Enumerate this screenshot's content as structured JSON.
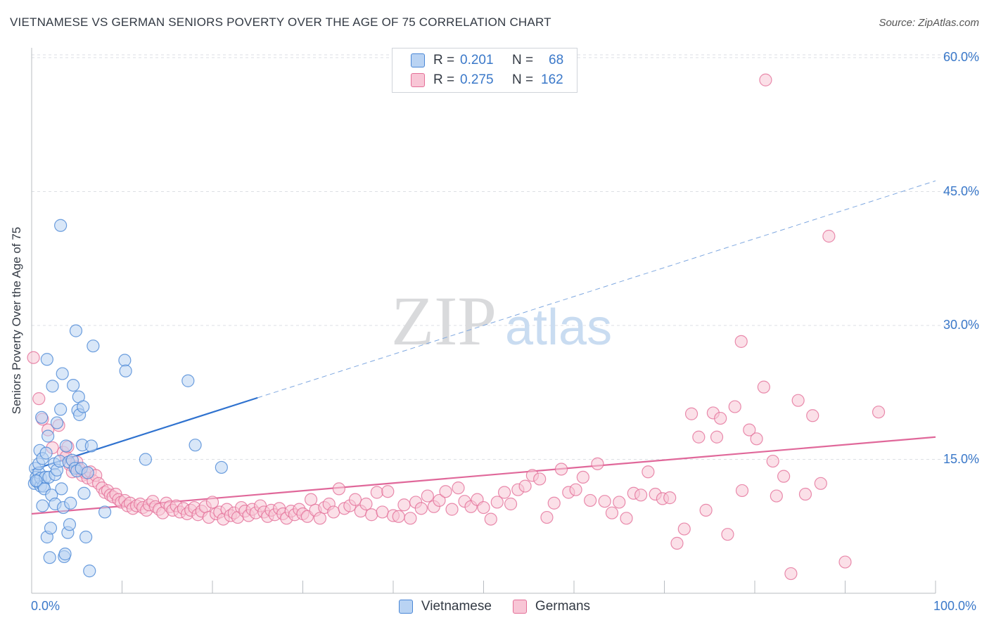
{
  "header": {
    "title": "VIETNAMESE VS GERMAN SENIORS POVERTY OVER THE AGE OF 75 CORRELATION CHART",
    "source": "Source: ZipAtlas.com"
  },
  "watermark": {
    "zip": "ZIP",
    "atlas": "atlas"
  },
  "legend": {
    "rows": [
      {
        "r_label": "R =",
        "r_value": "0.201",
        "n_label": "N =",
        "n_value": "68",
        "color": "#4a87d6",
        "fill": "#b9d3f3"
      },
      {
        "r_label": "R =",
        "r_value": "0.275",
        "n_label": "N =",
        "n_value": "162",
        "color": "#e46f98",
        "fill": "#f8c6d6"
      }
    ]
  },
  "chart_data": {
    "type": "scatter",
    "title": "VIETNAMESE VS GERMAN SENIORS POVERTY OVER THE AGE OF 75 CORRELATION CHART",
    "xlabel": "",
    "ylabel": "Seniors Poverty Over the Age of 75",
    "xlim": [
      0,
      100
    ],
    "ylim": [
      0,
      60
    ],
    "x_tick_labels": [
      "0.0%",
      "100.0%"
    ],
    "y_tick_labels": [
      "15.0%",
      "30.0%",
      "45.0%",
      "60.0%"
    ],
    "y_ticks": [
      15,
      30,
      45,
      60
    ],
    "grid": true,
    "legend_position": "top-center",
    "series": [
      {
        "name": "Vietnamese",
        "color": "#4a87d6",
        "fill": "#b9d3f3",
        "trend": {
          "x0": 0,
          "y0": 13.8,
          "x1": 25,
          "y1": 21.9,
          "dash_to_x": 100,
          "dash_to_y": 46.2
        },
        "points": [
          [
            0.3,
            12.3
          ],
          [
            0.4,
            14.0
          ],
          [
            0.5,
            13.0
          ],
          [
            0.6,
            12.5
          ],
          [
            0.7,
            12.6
          ],
          [
            0.8,
            13.5
          ],
          [
            0.8,
            14.5
          ],
          [
            0.9,
            16.0
          ],
          [
            1.0,
            12.0
          ],
          [
            1.0,
            12.9
          ],
          [
            1.1,
            19.7
          ],
          [
            1.2,
            15.1
          ],
          [
            1.2,
            9.8
          ],
          [
            1.3,
            12.0
          ],
          [
            1.4,
            11.7
          ],
          [
            1.5,
            13.0
          ],
          [
            1.6,
            15.7
          ],
          [
            1.7,
            6.3
          ],
          [
            1.7,
            26.2
          ],
          [
            1.8,
            17.6
          ],
          [
            1.9,
            13.0
          ],
          [
            2.0,
            4.0
          ],
          [
            2.1,
            7.3
          ],
          [
            2.2,
            11.0
          ],
          [
            2.3,
            23.2
          ],
          [
            2.5,
            14.5
          ],
          [
            2.6,
            10.0
          ],
          [
            2.6,
            13.3
          ],
          [
            2.8,
            13.8
          ],
          [
            2.8,
            19.1
          ],
          [
            3.1,
            14.8
          ],
          [
            3.2,
            20.6
          ],
          [
            3.3,
            11.7
          ],
          [
            3.4,
            24.6
          ],
          [
            3.5,
            9.6
          ],
          [
            3.6,
            4.1
          ],
          [
            3.7,
            4.4
          ],
          [
            3.8,
            16.5
          ],
          [
            4.0,
            6.8
          ],
          [
            4.1,
            14.7
          ],
          [
            4.2,
            7.7
          ],
          [
            4.3,
            10.1
          ],
          [
            4.5,
            14.9
          ],
          [
            4.6,
            23.3
          ],
          [
            4.8,
            14.0
          ],
          [
            4.9,
            29.4
          ],
          [
            5.0,
            13.7
          ],
          [
            5.1,
            20.5
          ],
          [
            5.2,
            22.0
          ],
          [
            5.3,
            20.0
          ],
          [
            5.5,
            14.0
          ],
          [
            5.6,
            16.6
          ],
          [
            5.7,
            20.9
          ],
          [
            5.8,
            11.2
          ],
          [
            6.0,
            6.3
          ],
          [
            6.2,
            13.5
          ],
          [
            6.4,
            2.5
          ],
          [
            6.6,
            16.5
          ],
          [
            6.8,
            27.7
          ],
          [
            8.1,
            9.1
          ],
          [
            10.3,
            26.1
          ],
          [
            10.4,
            24.9
          ],
          [
            12.6,
            15.0
          ],
          [
            17.3,
            23.8
          ],
          [
            18.1,
            16.6
          ],
          [
            21.0,
            14.1
          ],
          [
            3.2,
            41.2
          ],
          [
            0.5,
            12.6
          ]
        ]
      },
      {
        "name": "Germans",
        "color": "#e46f98",
        "fill": "#f8c6d6",
        "trend": {
          "x0": 0,
          "y0": 8.9,
          "x1": 100,
          "y1": 17.5
        },
        "points": [
          [
            0.2,
            26.4
          ],
          [
            0.8,
            21.8
          ],
          [
            1.2,
            19.5
          ],
          [
            1.8,
            18.3
          ],
          [
            2.3,
            16.3
          ],
          [
            3.0,
            18.8
          ],
          [
            3.5,
            15.8
          ],
          [
            3.8,
            15.3
          ],
          [
            4.0,
            16.4
          ],
          [
            4.2,
            14.4
          ],
          [
            4.5,
            13.6
          ],
          [
            4.8,
            14.2
          ],
          [
            5.0,
            14.7
          ],
          [
            5.3,
            13.9
          ],
          [
            5.6,
            13.2
          ],
          [
            5.9,
            13.5
          ],
          [
            6.2,
            12.9
          ],
          [
            6.5,
            13.6
          ],
          [
            6.8,
            12.6
          ],
          [
            7.1,
            13.2
          ],
          [
            7.4,
            12.3
          ],
          [
            7.8,
            11.8
          ],
          [
            8.1,
            11.3
          ],
          [
            8.4,
            11.5
          ],
          [
            8.7,
            11.0
          ],
          [
            9.0,
            10.8
          ],
          [
            9.3,
            11.1
          ],
          [
            9.6,
            10.5
          ],
          [
            9.9,
            10.2
          ],
          [
            10.3,
            10.4
          ],
          [
            10.6,
            9.8
          ],
          [
            10.9,
            10.1
          ],
          [
            11.2,
            9.5
          ],
          [
            11.6,
            9.8
          ],
          [
            12.0,
            10.0
          ],
          [
            12.3,
            9.6
          ],
          [
            12.7,
            9.3
          ],
          [
            13.0,
            9.9
          ],
          [
            13.4,
            10.3
          ],
          [
            13.7,
            9.7
          ],
          [
            14.1,
            9.4
          ],
          [
            14.5,
            9.0
          ],
          [
            14.9,
            10.1
          ],
          [
            15.3,
            9.7
          ],
          [
            15.6,
            9.3
          ],
          [
            16.0,
            9.8
          ],
          [
            16.4,
            9.1
          ],
          [
            16.8,
            9.5
          ],
          [
            17.2,
            8.9
          ],
          [
            17.6,
            9.3
          ],
          [
            18.0,
            9.6
          ],
          [
            18.4,
            8.8
          ],
          [
            18.8,
            9.2
          ],
          [
            19.2,
            9.7
          ],
          [
            19.6,
            8.5
          ],
          [
            20.0,
            10.2
          ],
          [
            20.4,
            8.9
          ],
          [
            20.8,
            9.1
          ],
          [
            21.2,
            8.3
          ],
          [
            21.6,
            9.4
          ],
          [
            22.0,
            8.7
          ],
          [
            22.4,
            9.0
          ],
          [
            22.8,
            8.5
          ],
          [
            23.2,
            9.6
          ],
          [
            23.6,
            9.2
          ],
          [
            24.0,
            8.7
          ],
          [
            24.4,
            9.4
          ],
          [
            24.8,
            9.0
          ],
          [
            25.3,
            9.8
          ],
          [
            25.7,
            9.1
          ],
          [
            26.1,
            8.6
          ],
          [
            26.5,
            9.3
          ],
          [
            26.9,
            8.8
          ],
          [
            27.4,
            9.5
          ],
          [
            27.8,
            8.9
          ],
          [
            28.2,
            8.4
          ],
          [
            28.7,
            9.2
          ],
          [
            29.1,
            8.8
          ],
          [
            29.6,
            9.4
          ],
          [
            30.0,
            8.9
          ],
          [
            30.5,
            8.6
          ],
          [
            30.9,
            10.5
          ],
          [
            31.4,
            9.3
          ],
          [
            31.9,
            8.4
          ],
          [
            32.4,
            9.6
          ],
          [
            32.9,
            10.0
          ],
          [
            33.4,
            9.1
          ],
          [
            34.0,
            11.7
          ],
          [
            34.6,
            9.5
          ],
          [
            35.2,
            9.8
          ],
          [
            35.8,
            10.5
          ],
          [
            36.4,
            9.2
          ],
          [
            37.0,
            10.0
          ],
          [
            37.6,
            8.8
          ],
          [
            38.2,
            11.3
          ],
          [
            38.8,
            9.1
          ],
          [
            39.4,
            11.4
          ],
          [
            40.0,
            8.7
          ],
          [
            40.6,
            8.6
          ],
          [
            41.2,
            9.9
          ],
          [
            41.9,
            8.4
          ],
          [
            42.5,
            10.2
          ],
          [
            43.1,
            9.5
          ],
          [
            43.8,
            10.9
          ],
          [
            44.5,
            9.7
          ],
          [
            45.1,
            10.4
          ],
          [
            45.8,
            11.4
          ],
          [
            46.5,
            9.4
          ],
          [
            47.2,
            11.8
          ],
          [
            47.9,
            10.3
          ],
          [
            48.6,
            9.7
          ],
          [
            49.3,
            10.5
          ],
          [
            50.0,
            9.6
          ],
          [
            50.8,
            8.3
          ],
          [
            51.5,
            10.2
          ],
          [
            52.3,
            11.3
          ],
          [
            53.0,
            10.0
          ],
          [
            53.8,
            11.6
          ],
          [
            54.6,
            12.0
          ],
          [
            55.4,
            13.2
          ],
          [
            56.2,
            12.8
          ],
          [
            57.0,
            8.5
          ],
          [
            57.8,
            10.1
          ],
          [
            58.6,
            13.9
          ],
          [
            59.4,
            11.3
          ],
          [
            60.2,
            11.6
          ],
          [
            61.0,
            13.0
          ],
          [
            61.8,
            10.4
          ],
          [
            62.6,
            14.5
          ],
          [
            63.4,
            10.3
          ],
          [
            64.2,
            9.0
          ],
          [
            65.0,
            10.2
          ],
          [
            65.8,
            8.4
          ],
          [
            66.6,
            11.2
          ],
          [
            67.4,
            11.0
          ],
          [
            68.2,
            13.6
          ],
          [
            69.0,
            11.1
          ],
          [
            69.8,
            10.6
          ],
          [
            70.6,
            10.7
          ],
          [
            71.4,
            5.6
          ],
          [
            72.2,
            7.2
          ],
          [
            73.0,
            20.1
          ],
          [
            73.8,
            17.5
          ],
          [
            74.6,
            9.3
          ],
          [
            75.4,
            20.2
          ],
          [
            76.2,
            19.6
          ],
          [
            77.0,
            6.6
          ],
          [
            77.8,
            20.9
          ],
          [
            78.6,
            11.5
          ],
          [
            79.4,
            18.3
          ],
          [
            80.2,
            17.3
          ],
          [
            81.0,
            23.1
          ],
          [
            82.0,
            14.8
          ],
          [
            82.4,
            10.9
          ],
          [
            83.2,
            13.1
          ],
          [
            84.0,
            2.2
          ],
          [
            84.8,
            21.6
          ],
          [
            85.6,
            11.1
          ],
          [
            86.4,
            19.9
          ],
          [
            87.3,
            12.3
          ],
          [
            88.2,
            40.0
          ],
          [
            90.0,
            3.5
          ],
          [
            93.7,
            20.3
          ],
          [
            78.5,
            28.2
          ],
          [
            81.2,
            57.5
          ],
          [
            75.8,
            17.5
          ]
        ]
      }
    ]
  }
}
